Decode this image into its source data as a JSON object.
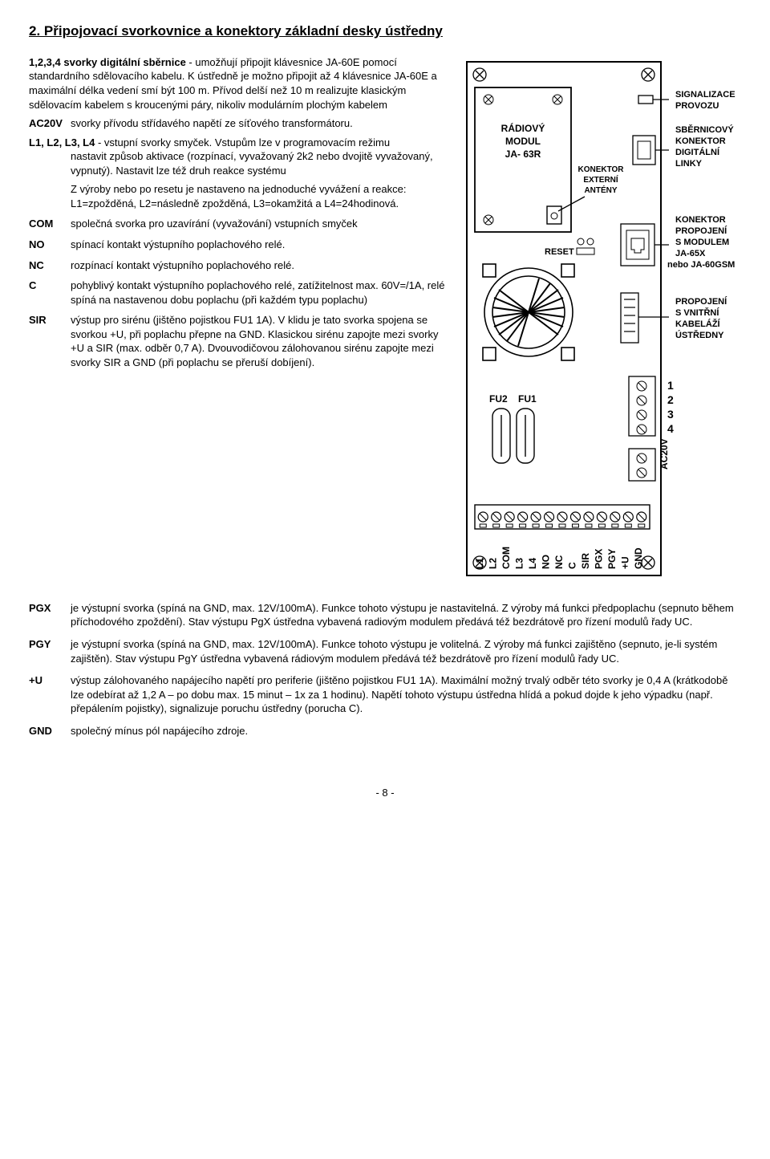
{
  "heading": "2.  Připojovací svorkovnice a konektory základní desky ústředny",
  "items": [
    {
      "label": "",
      "label_inline": "1,2,3,4 svorky digitální sběrnice",
      "text": "  - umožňují připojit klávesnice JA-60E pomocí standardního sdělovacího kabelu. K ústředně je možno připojit až 4 klávesnice JA-60E a maximální délka vedení smí být 100 m. Přívod delší než 10 m realizujte klasickým sdělovacím kabelem s kroucenými páry, nikoliv modulárním plochým kabelem"
    },
    {
      "label": "AC20V",
      "text": "svorky přívodu střídavého napětí ze síťového transformátoru."
    },
    {
      "label": "",
      "label_inline": "L1, L2, L3, L4",
      "text": " - vstupní svorky smyček. Vstupům lze v programovacím režimu",
      "indent_lines": [
        "nastavit způsob aktivace (rozpínací, vyvažovaný 2k2 nebo dvojitě vyvažovaný, vypnutý). Nastavit lze též druh reakce systému",
        "Z výroby nebo po resetu je nastaveno na jednoduché vyvážení a reakce: L1=zpožděná, L2=následně zpožděná, L3=okamžitá a L4=24hodinová."
      ]
    },
    {
      "label": "COM",
      "text": "společná svorka pro uzavírání (vyvažování) vstupních smyček"
    },
    {
      "label": "NO",
      "text": "spínací kontakt výstupního poplachového relé."
    },
    {
      "label": "NC",
      "text": "rozpínací kontakt výstupního poplachového relé."
    },
    {
      "label": "C",
      "text": "pohyblivý kontakt výstupního poplachového relé, zatížitelnost max. 60V=/1A, relé spíná na nastavenou dobu poplachu (při každém typu poplachu)"
    },
    {
      "label": "SIR",
      "text": "výstup pro sirénu (jištěno pojistkou FU1 1A). V klidu je tato svorka spojena se svorkou +U, při poplachu přepne na GND. Klasickou sirénu zapojte mezi svorky +U a SIR (max. odběr 0,7 A). Dvouvodičovou zálohovanou sirénu zapojte mezi svorky SIR a GND (při poplachu se přeruší dobíjení)."
    },
    {
      "label": "PGX",
      "text": "je výstupní svorka (spíná na GND, max. 12V/100mA). Funkce tohoto výstupu je nastavitelná.  Z výroby má  funkci předpoplachu (sepnuto během příchodového zpoždění). Stav výstupu PgX ústředna vybavená radiovým modulem předává též bezdrátově pro řízení modulů řady UC."
    },
    {
      "label": "PGY",
      "text": "je výstupní svorka (spíná na GND, max. 12V/100mA). Funkce tohoto výstupu je volitelná. Z výroby má funkci zajištěno (sepnuto, je-li systém zajištěn). Stav výstupu PgY ústředna vybavená rádiovým modulem předává též bezdrátově pro řízení modulů řady UC."
    },
    {
      "label": "+U",
      "text": "výstup zálohovaného napájecího napětí pro periferie (jištěno pojistkou FU1 1A). Maximální možný trvalý odběr této svorky je 0,4 A (krátkodobě lze odebírat až 1,2 A – po dobu max. 15 minut – 1x za 1 hodinu). Napětí tohoto výstupu ústředna hlídá a pokud dojde k jeho výpadku (např. přepálením pojistky), signalizuje poruchu ústředny (porucha C)."
    },
    {
      "label": "GND",
      "text": "společný mínus pól napájecího zdroje."
    }
  ],
  "figure": {
    "module_lines": [
      "RÁDIOVÝ",
      "MODUL",
      "JA- 63R"
    ],
    "konektor_ant": [
      "KONEKTOR",
      "EXTERNÍ",
      "ANTÉNY"
    ],
    "reset": "RESET",
    "fu2": "FU2",
    "fu1": "FU1",
    "right_blocks": [
      [
        "SIGNALIZACE",
        "PROVOZU"
      ],
      [
        "SBĚRNICOVÝ",
        "KONEKTOR",
        "DIGITÁLNÍ",
        "LINKY"
      ],
      [
        "KONEKTOR",
        "PROPOJENÍ",
        "S MODULEM",
        "JA-65X",
        "nebo JA-60GSM"
      ],
      [
        "PROPOJENÍ",
        "S VNITŘNÍ",
        "KABELÁŽÍ",
        "ÚSTŘEDNY"
      ]
    ],
    "digits": [
      "1",
      "2",
      "3",
      "4"
    ],
    "ac20v": "AC20V",
    "terminals": [
      "L1",
      "L2",
      "COM",
      "L3",
      "L4",
      "NO",
      "NC",
      "C",
      "SIR",
      "PGX",
      "PGY",
      "+U",
      "GND"
    ]
  },
  "page_num": "- 8 -"
}
